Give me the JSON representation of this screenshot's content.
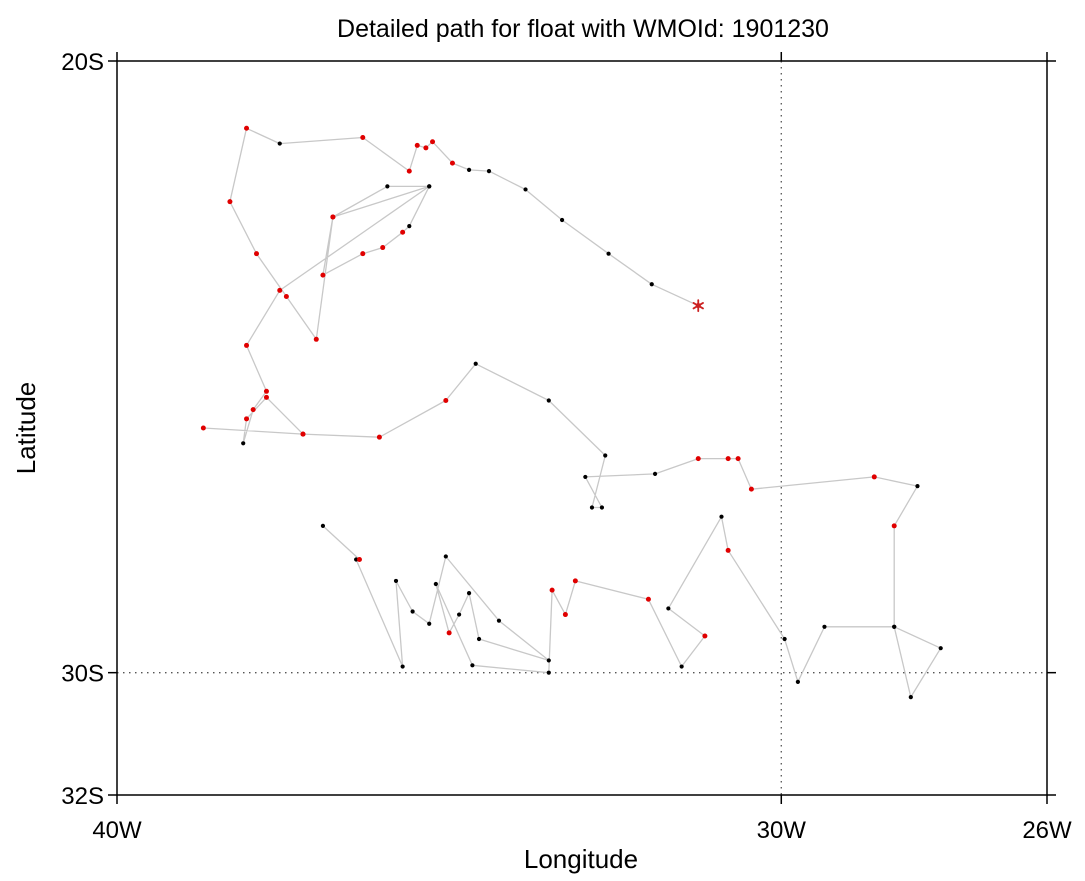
{
  "chart_data": {
    "type": "scatter",
    "title": "Detailed path for float with WMOId: 1901230",
    "xlabel": "Longitude",
    "ylabel": "Latitude",
    "xlim": [
      -40,
      -26
    ],
    "ylim": [
      -32,
      -20
    ],
    "x_ticks": [
      {
        "value": -40,
        "label": "40W"
      },
      {
        "value": -30,
        "label": "30W"
      },
      {
        "value": -26,
        "label": "26W"
      }
    ],
    "y_ticks": [
      {
        "value": -20,
        "label": "20S"
      },
      {
        "value": -30,
        "label": "30S"
      },
      {
        "value": -32,
        "label": "32S"
      }
    ],
    "reference_lines": {
      "x": -30,
      "y": -30,
      "style": "dotted"
    },
    "colors": {
      "path": "#c8c8c8",
      "flagged": "#e00000",
      "normal": "#000000",
      "start_marker": "#cc2222"
    },
    "start_marker": {
      "lon": -31.25,
      "lat": -24.0,
      "symbol": "asterisk"
    },
    "points": [
      {
        "lon": -31.25,
        "lat": -24.0,
        "c": "r"
      },
      {
        "lon": -31.95,
        "lat": -23.65,
        "c": "k"
      },
      {
        "lon": -32.6,
        "lat": -23.15,
        "c": "k"
      },
      {
        "lon": -33.3,
        "lat": -22.6,
        "c": "k"
      },
      {
        "lon": -33.85,
        "lat": -22.1,
        "c": "k"
      },
      {
        "lon": -34.4,
        "lat": -21.8,
        "c": "k"
      },
      {
        "lon": -34.7,
        "lat": -21.78,
        "c": "k"
      },
      {
        "lon": -34.95,
        "lat": -21.67,
        "c": "r"
      },
      {
        "lon": -35.25,
        "lat": -21.32,
        "c": "r"
      },
      {
        "lon": -35.35,
        "lat": -21.42,
        "c": "r"
      },
      {
        "lon": -35.48,
        "lat": -21.38,
        "c": "r"
      },
      {
        "lon": -35.6,
        "lat": -21.8,
        "c": "r"
      },
      {
        "lon": -36.3,
        "lat": -21.25,
        "c": "r"
      },
      {
        "lon": -37.55,
        "lat": -21.35,
        "c": "k"
      },
      {
        "lon": -38.05,
        "lat": -21.1,
        "c": "r"
      },
      {
        "lon": -38.3,
        "lat": -22.3,
        "c": "r"
      },
      {
        "lon": -37.9,
        "lat": -23.15,
        "c": "r"
      },
      {
        "lon": -37.45,
        "lat": -23.85,
        "c": "r"
      },
      {
        "lon": -37.0,
        "lat": -24.55,
        "c": "r"
      },
      {
        "lon": -36.75,
        "lat": -22.55,
        "c": "r"
      },
      {
        "lon": -35.3,
        "lat": -22.05,
        "c": "k"
      },
      {
        "lon": -35.93,
        "lat": -22.05,
        "c": "k"
      },
      {
        "lon": -36.75,
        "lat": -22.55,
        "c": "r"
      },
      {
        "lon": -36.9,
        "lat": -23.5,
        "c": "r"
      },
      {
        "lon": -36.3,
        "lat": -23.15,
        "c": "r"
      },
      {
        "lon": -36.0,
        "lat": -23.05,
        "c": "r"
      },
      {
        "lon": -35.7,
        "lat": -22.8,
        "c": "r"
      },
      {
        "lon": -35.6,
        "lat": -22.7,
        "c": "k"
      },
      {
        "lon": -35.3,
        "lat": -22.05,
        "c": "k"
      },
      {
        "lon": -37.55,
        "lat": -23.75,
        "c": "r"
      },
      {
        "lon": -38.05,
        "lat": -24.65,
        "c": "r"
      },
      {
        "lon": -37.75,
        "lat": -25.4,
        "c": "r"
      },
      {
        "lon": -37.95,
        "lat": -25.7,
        "c": "r"
      },
      {
        "lon": -38.1,
        "lat": -26.25,
        "c": "k"
      },
      {
        "lon": -38.05,
        "lat": -25.85,
        "c": "r"
      },
      {
        "lon": -37.75,
        "lat": -25.5,
        "c": "r"
      },
      {
        "lon": -37.2,
        "lat": -26.1,
        "c": "r"
      },
      {
        "lon": -38.7,
        "lat": -26.0,
        "c": "r"
      },
      {
        "lon": -37.2,
        "lat": -26.1,
        "c": "r"
      },
      {
        "lon": -36.05,
        "lat": -26.15,
        "c": "r"
      },
      {
        "lon": -35.05,
        "lat": -25.55,
        "c": "r"
      },
      {
        "lon": -34.6,
        "lat": -24.95,
        "c": "k"
      },
      {
        "lon": -33.5,
        "lat": -25.55,
        "c": "k"
      },
      {
        "lon": -32.65,
        "lat": -26.45,
        "c": "k"
      },
      {
        "lon": -32.85,
        "lat": -27.3,
        "c": "k"
      },
      {
        "lon": -32.7,
        "lat": -27.3,
        "c": "k"
      },
      {
        "lon": -32.95,
        "lat": -26.8,
        "c": "k"
      },
      {
        "lon": -31.9,
        "lat": -26.75,
        "c": "k"
      },
      {
        "lon": -31.25,
        "lat": -26.5,
        "c": "r"
      },
      {
        "lon": -30.8,
        "lat": -26.5,
        "c": "r"
      },
      {
        "lon": -30.65,
        "lat": -26.5,
        "c": "r"
      },
      {
        "lon": -30.45,
        "lat": -27.0,
        "c": "r"
      },
      {
        "lon": -28.6,
        "lat": -26.8,
        "c": "r"
      },
      {
        "lon": -27.95,
        "lat": -26.95,
        "c": "k"
      },
      {
        "lon": -28.3,
        "lat": -27.6,
        "c": "r"
      },
      {
        "lon": -28.3,
        "lat": -29.25,
        "c": "k"
      },
      {
        "lon": -27.6,
        "lat": -29.6,
        "c": "k"
      },
      {
        "lon": -28.05,
        "lat": -30.4,
        "c": "k"
      },
      {
        "lon": -28.3,
        "lat": -29.25,
        "c": "k"
      },
      {
        "lon": -29.35,
        "lat": -29.25,
        "c": "k"
      },
      {
        "lon": -29.75,
        "lat": -30.15,
        "c": "k"
      },
      {
        "lon": -29.95,
        "lat": -29.45,
        "c": "k"
      },
      {
        "lon": -30.8,
        "lat": -28.0,
        "c": "r"
      },
      {
        "lon": -30.9,
        "lat": -27.45,
        "c": "k"
      },
      {
        "lon": -31.7,
        "lat": -28.95,
        "c": "k"
      },
      {
        "lon": -31.15,
        "lat": -29.4,
        "c": "r"
      },
      {
        "lon": -31.5,
        "lat": -29.9,
        "c": "k"
      },
      {
        "lon": -32.0,
        "lat": -28.8,
        "c": "r"
      },
      {
        "lon": -33.1,
        "lat": -28.5,
        "c": "r"
      },
      {
        "lon": -33.25,
        "lat": -29.05,
        "c": "r"
      },
      {
        "lon": -33.45,
        "lat": -28.65,
        "c": "r"
      },
      {
        "lon": -33.5,
        "lat": -30.0,
        "c": "k"
      },
      {
        "lon": -34.65,
        "lat": -29.88,
        "c": "k"
      },
      {
        "lon": -35.2,
        "lat": -28.55,
        "c": "k"
      },
      {
        "lon": -35.0,
        "lat": -29.35,
        "c": "r"
      },
      {
        "lon": -34.85,
        "lat": -29.05,
        "c": "k"
      },
      {
        "lon": -34.7,
        "lat": -28.7,
        "c": "k"
      },
      {
        "lon": -34.55,
        "lat": -29.45,
        "c": "k"
      },
      {
        "lon": -33.5,
        "lat": -29.8,
        "c": "k"
      },
      {
        "lon": -34.25,
        "lat": -29.15,
        "c": "k"
      },
      {
        "lon": -35.05,
        "lat": -28.1,
        "c": "k"
      },
      {
        "lon": -35.3,
        "lat": -29.2,
        "c": "k"
      },
      {
        "lon": -35.55,
        "lat": -29.0,
        "c": "k"
      },
      {
        "lon": -35.8,
        "lat": -28.5,
        "c": "k"
      },
      {
        "lon": -35.7,
        "lat": -29.9,
        "c": "k"
      },
      {
        "lon": -36.4,
        "lat": -28.15,
        "c": "k"
      },
      {
        "lon": -36.35,
        "lat": -28.15,
        "c": "r"
      },
      {
        "lon": -36.9,
        "lat": -27.6,
        "c": "k"
      }
    ]
  }
}
